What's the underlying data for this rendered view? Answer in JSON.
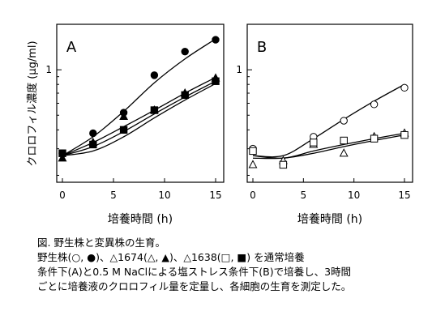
{
  "figure": {
    "ylabel": "クロロフィル濃度 (µg/ml)",
    "y_tick_label": "1",
    "caption": [
      "図. 野生株と変異株の生育。",
      "野生株(○, ●)、△1674(△, ▲)、△1638(□, ■) を通常培養",
      "条件下(A)と0.5 M NaClによる塩ストレス条件下(B)で培養し、3時間",
      "ごとに培養液のクロロフィル量を定量し、各細胞の生育を測定した。"
    ]
  },
  "chart_data": [
    {
      "type": "scatter",
      "panel_label": "A",
      "xlabel": "培養時間 (h)",
      "ylabel": "クロロフィル濃度 (µg/ml)",
      "y_scale": "log",
      "xlim": [
        0,
        15
      ],
      "ylim": [
        0.18,
        2.0
      ],
      "x_ticks": [
        0,
        5,
        10,
        15
      ],
      "y_ticks": [
        1
      ],
      "legend": "none",
      "series": [
        {
          "marker": "filled-circle",
          "x": [
            0,
            3,
            6,
            9,
            12,
            15
          ],
          "y": [
            0.28,
            0.38,
            0.52,
            0.92,
            1.32,
            1.58
          ]
        },
        {
          "marker": "filled-triangle",
          "x": [
            0,
            3,
            6,
            9,
            12,
            15
          ],
          "y": [
            0.26,
            0.33,
            0.49,
            0.54,
            0.7,
            0.88
          ]
        },
        {
          "marker": "filled-square",
          "x": [
            0,
            3,
            6,
            9,
            12,
            15
          ],
          "y": [
            0.28,
            0.32,
            0.4,
            0.54,
            0.68,
            0.84
          ]
        }
      ],
      "fits": [
        {
          "x": [
            0,
            3,
            6,
            9,
            12,
            15
          ],
          "y": [
            0.27,
            0.36,
            0.53,
            0.82,
            1.18,
            1.6
          ]
        },
        {
          "x": [
            0,
            3,
            6,
            9,
            12,
            15
          ],
          "y": [
            0.27,
            0.33,
            0.42,
            0.54,
            0.7,
            0.89
          ]
        },
        {
          "x": [
            0,
            3,
            6,
            9,
            12,
            15
          ],
          "y": [
            0.27,
            0.31,
            0.39,
            0.51,
            0.66,
            0.84
          ]
        },
        {
          "x": [
            0,
            3,
            6,
            9,
            12,
            15
          ],
          "y": [
            0.27,
            0.29,
            0.36,
            0.48,
            0.63,
            0.81
          ]
        }
      ]
    },
    {
      "type": "scatter",
      "panel_label": "B",
      "xlabel": "培養時間 (h)",
      "ylabel": "",
      "y_scale": "log",
      "xlim": [
        0,
        15
      ],
      "ylim": [
        0.18,
        2.0
      ],
      "x_ticks": [
        0,
        5,
        10,
        15
      ],
      "y_ticks": [
        1
      ],
      "legend": "none",
      "series": [
        {
          "marker": "open-circle",
          "x": [
            0,
            3,
            6,
            9,
            12,
            15
          ],
          "y": [
            0.3,
            0.24,
            0.36,
            0.46,
            0.59,
            0.76
          ]
        },
        {
          "marker": "open-triangle",
          "x": [
            0,
            3,
            6,
            9,
            12,
            15
          ],
          "y": [
            0.235,
            0.25,
            0.32,
            0.28,
            0.36,
            0.38
          ]
        },
        {
          "marker": "open-square",
          "x": [
            0,
            3,
            6,
            9,
            12,
            15
          ],
          "y": [
            0.29,
            0.235,
            0.33,
            0.34,
            0.35,
            0.37
          ]
        }
      ],
      "fits": [
        {
          "x": [
            0,
            3,
            6,
            9,
            12,
            15
          ],
          "y": [
            0.27,
            0.27,
            0.35,
            0.47,
            0.62,
            0.8
          ]
        },
        {
          "x": [
            0,
            3,
            6,
            9,
            12,
            15
          ],
          "y": [
            0.27,
            0.26,
            0.29,
            0.32,
            0.35,
            0.38
          ]
        },
        {
          "x": [
            0,
            3,
            6,
            9,
            12,
            15
          ],
          "y": [
            0.26,
            0.26,
            0.28,
            0.31,
            0.34,
            0.37
          ]
        }
      ]
    }
  ]
}
